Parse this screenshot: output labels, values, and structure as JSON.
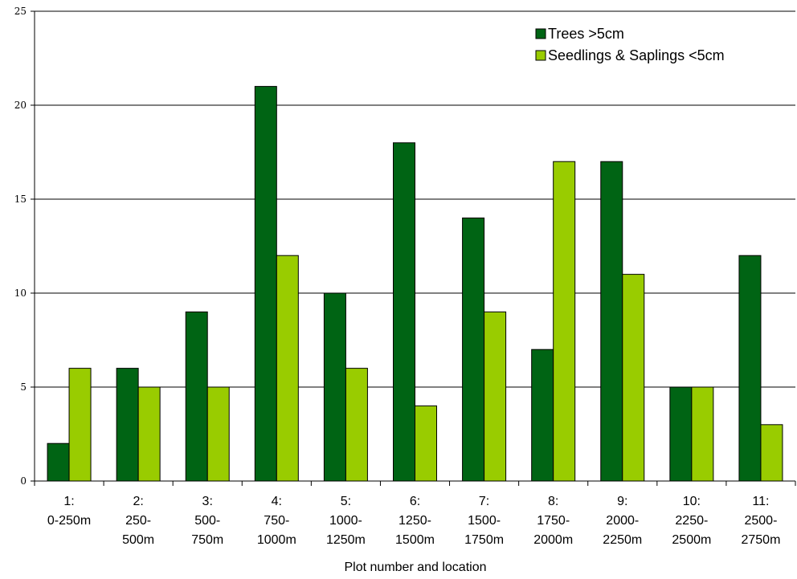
{
  "chart_data": {
    "type": "bar",
    "title": "",
    "xlabel": "Plot number and location",
    "ylabel": "",
    "ylim": [
      0,
      25
    ],
    "yticks": [
      0,
      5,
      10,
      15,
      20,
      25
    ],
    "grid": "horizontal",
    "legend_position": "top-right",
    "categories": [
      [
        "1:",
        "0-250m"
      ],
      [
        "2:",
        "250-",
        "500m"
      ],
      [
        "3:",
        "500-",
        "750m"
      ],
      [
        "4:",
        "750-",
        "1000m"
      ],
      [
        "5:",
        "1000-",
        "1250m"
      ],
      [
        "6:",
        "1250-",
        "1500m"
      ],
      [
        "7:",
        "1500-",
        "1750m"
      ],
      [
        "8:",
        "1750-",
        "2000m"
      ],
      [
        "9:",
        "2000-",
        "2250m"
      ],
      [
        "10:",
        "2250-",
        "2500m"
      ],
      [
        "11:",
        "2500-",
        "2750m"
      ]
    ],
    "series": [
      {
        "name": "Trees >5cm",
        "color": "#006414",
        "values": [
          2,
          6,
          9,
          21,
          10,
          18,
          14,
          7,
          17,
          5,
          12
        ]
      },
      {
        "name": "Seedlings & Saplings <5cm",
        "color": "#99cc00",
        "values": [
          6,
          5,
          5,
          12,
          6,
          4,
          9,
          17,
          11,
          5,
          3
        ]
      }
    ]
  }
}
